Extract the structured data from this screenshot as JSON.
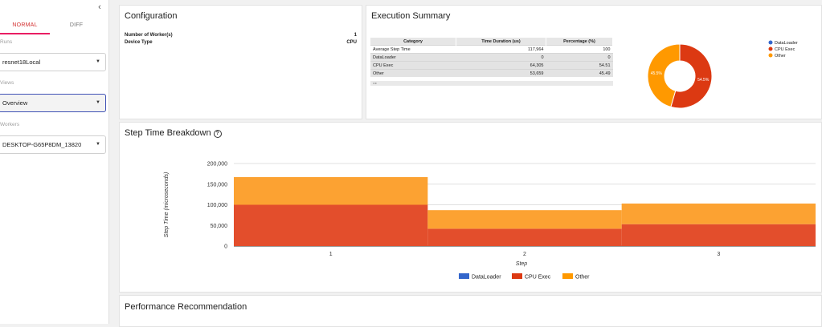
{
  "sidebar": {
    "collapse_glyph": "‹",
    "tabs": [
      {
        "label": "NORMAL"
      },
      {
        "label": "DIFF"
      }
    ],
    "runs": {
      "label": "Runs",
      "value": "resnet18Local"
    },
    "views": {
      "label": "Views",
      "value": "Overview"
    },
    "workers": {
      "label": "Workers",
      "value": "DESKTOP-G65P8DM_13820"
    },
    "caret": "▼"
  },
  "configuration": {
    "title": "Configuration",
    "rows": [
      {
        "label": "Number of Worker(s)",
        "value": "1"
      },
      {
        "label": "Device Type",
        "value": "CPU"
      }
    ]
  },
  "execution_summary": {
    "title": "Execution Summary",
    "columns": [
      "Category",
      "Time Duration (us)",
      "Percentage (%)"
    ],
    "rows": [
      [
        "Average Step Time",
        "117,964",
        "100"
      ],
      [
        "DataLoader",
        "0",
        "0"
      ],
      [
        "CPU Exec",
        "64,305",
        "54.51"
      ],
      [
        "Other",
        "53,659",
        "45.49"
      ]
    ],
    "pager": "◂ ▸"
  },
  "step_time": {
    "title": "Step Time Breakdown",
    "help_glyph": "?"
  },
  "performance": {
    "title": "Performance Recommendation"
  },
  "colors": {
    "dataloader": "#3366cc",
    "cpu_exec": "#dc3912",
    "other": "#ff9900",
    "cpu_exec_bar": "#e34e2c",
    "other_bar": "#fca232"
  },
  "chart_data": [
    {
      "type": "pie",
      "donut": true,
      "labels": [
        "DataLoader",
        "CPU Exec",
        "Other"
      ],
      "values": [
        0,
        54.5,
        45.5
      ],
      "slice_labels": [
        "",
        "54.5%",
        "45.5%"
      ],
      "legend_position": "right"
    },
    {
      "type": "area",
      "stacked": true,
      "step_style": true,
      "categories": [
        "1",
        "2",
        "3"
      ],
      "series": [
        {
          "name": "DataLoader",
          "values": [
            0,
            0,
            0
          ]
        },
        {
          "name": "CPU Exec",
          "values": [
            100000,
            42000,
            53000
          ]
        },
        {
          "name": "Other",
          "values": [
            67000,
            45000,
            50000
          ]
        }
      ],
      "xlabel": "Step",
      "ylabel": "Step Time (microseconds)",
      "yticks": [
        "0",
        "50,000",
        "100,000",
        "150,000",
        "200,000"
      ],
      "ylim": [
        0,
        200000
      ],
      "grid": true,
      "legend_position": "bottom"
    }
  ]
}
